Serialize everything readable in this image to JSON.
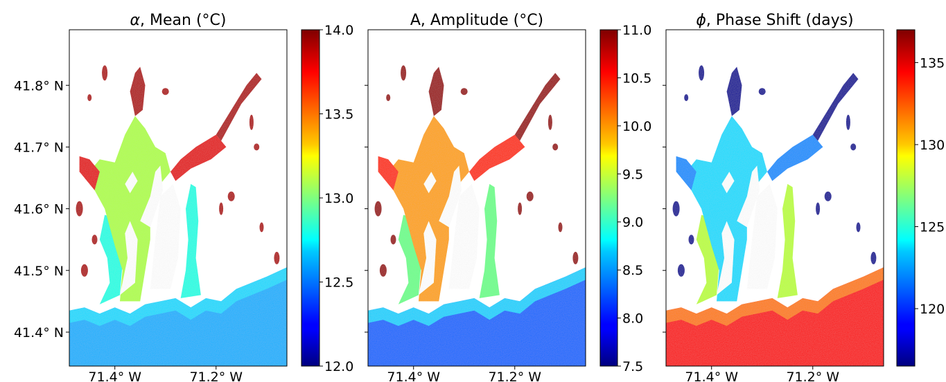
{
  "chart_data": [
    {
      "type": "heatmap",
      "title": "α, Mean (°C)",
      "title_symbol": "α",
      "title_rest": ", Mean (°C)",
      "colormap": "jet",
      "colorbar": {
        "range": [
          12.0,
          14.0
        ],
        "ticks": [
          12.0,
          12.5,
          13.0,
          13.5,
          14.0
        ],
        "tick_labels": [
          "12.0",
          "12.5",
          "13.0",
          "13.5",
          "14.0"
        ]
      },
      "xaxis": {
        "ticks": [
          -71.4,
          -71.2
        ],
        "tick_labels": [
          "71.4° W",
          "71.2° W"
        ],
        "range": [
          -71.49,
          -71.06
        ]
      },
      "yaxis": {
        "ticks": [
          41.4,
          41.5,
          41.6,
          41.7,
          41.8
        ],
        "tick_labels": [
          "41.4° N",
          "41.5° N",
          "41.6° N",
          "41.7° N",
          "41.8° N"
        ],
        "range": [
          41.345,
          41.89
        ]
      },
      "field": {
        "open_water": 12.6,
        "lower_bay": 12.8,
        "upper_bay": 13.1,
        "head_of_bay": 13.8,
        "rivers": 13.9
      }
    },
    {
      "type": "heatmap",
      "title": "A, Amplitude (°C)",
      "title_symbol": "",
      "title_rest": "A, Amplitude (°C)",
      "colormap": "jet",
      "colorbar": {
        "range": [
          7.5,
          11.0
        ],
        "ticks": [
          7.5,
          8.0,
          8.5,
          9.0,
          9.5,
          10.0,
          10.5,
          11.0
        ],
        "tick_labels": [
          "7.5",
          "8.0",
          "8.5",
          "9.0",
          "9.5",
          "10.0",
          "10.5",
          "11.0"
        ]
      },
      "xaxis": {
        "ticks": [
          -71.4,
          -71.2
        ],
        "tick_labels": [
          "71.4° W",
          "71.2° W"
        ],
        "range": [
          -71.49,
          -71.06
        ]
      },
      "yaxis": {
        "ticks": [
          41.4,
          41.5,
          41.6,
          41.7,
          41.8
        ],
        "tick_labels": [],
        "range": [
          41.345,
          41.89
        ]
      },
      "field": {
        "open_water": 8.3,
        "lower_bay": 9.2,
        "upper_bay": 10.0,
        "head_of_bay": 10.4,
        "rivers": 10.9
      }
    },
    {
      "type": "heatmap",
      "title": "ϕ, Phase Shift (days)",
      "title_symbol": "ϕ",
      "title_rest": ", Phase Shift (days)",
      "colormap": "jet",
      "colorbar": {
        "range": [
          116.5,
          137.0
        ],
        "ticks": [
          120,
          125,
          130,
          135
        ],
        "tick_labels": [
          "120",
          "125",
          "130",
          "135"
        ]
      },
      "xaxis": {
        "ticks": [
          -71.4,
          -71.2
        ],
        "tick_labels": [
          "71.4° W",
          "71.2° W"
        ],
        "range": [
          -71.49,
          -71.06
        ]
      },
      "yaxis": {
        "ticks": [
          41.4,
          41.5,
          41.6,
          41.7,
          41.8
        ],
        "tick_labels": [],
        "range": [
          41.345,
          41.89
        ]
      },
      "field": {
        "open_water": 134.5,
        "lower_bay": 128.0,
        "upper_bay": 123.5,
        "head_of_bay": 122.0,
        "rivers": 117.0
      }
    }
  ]
}
